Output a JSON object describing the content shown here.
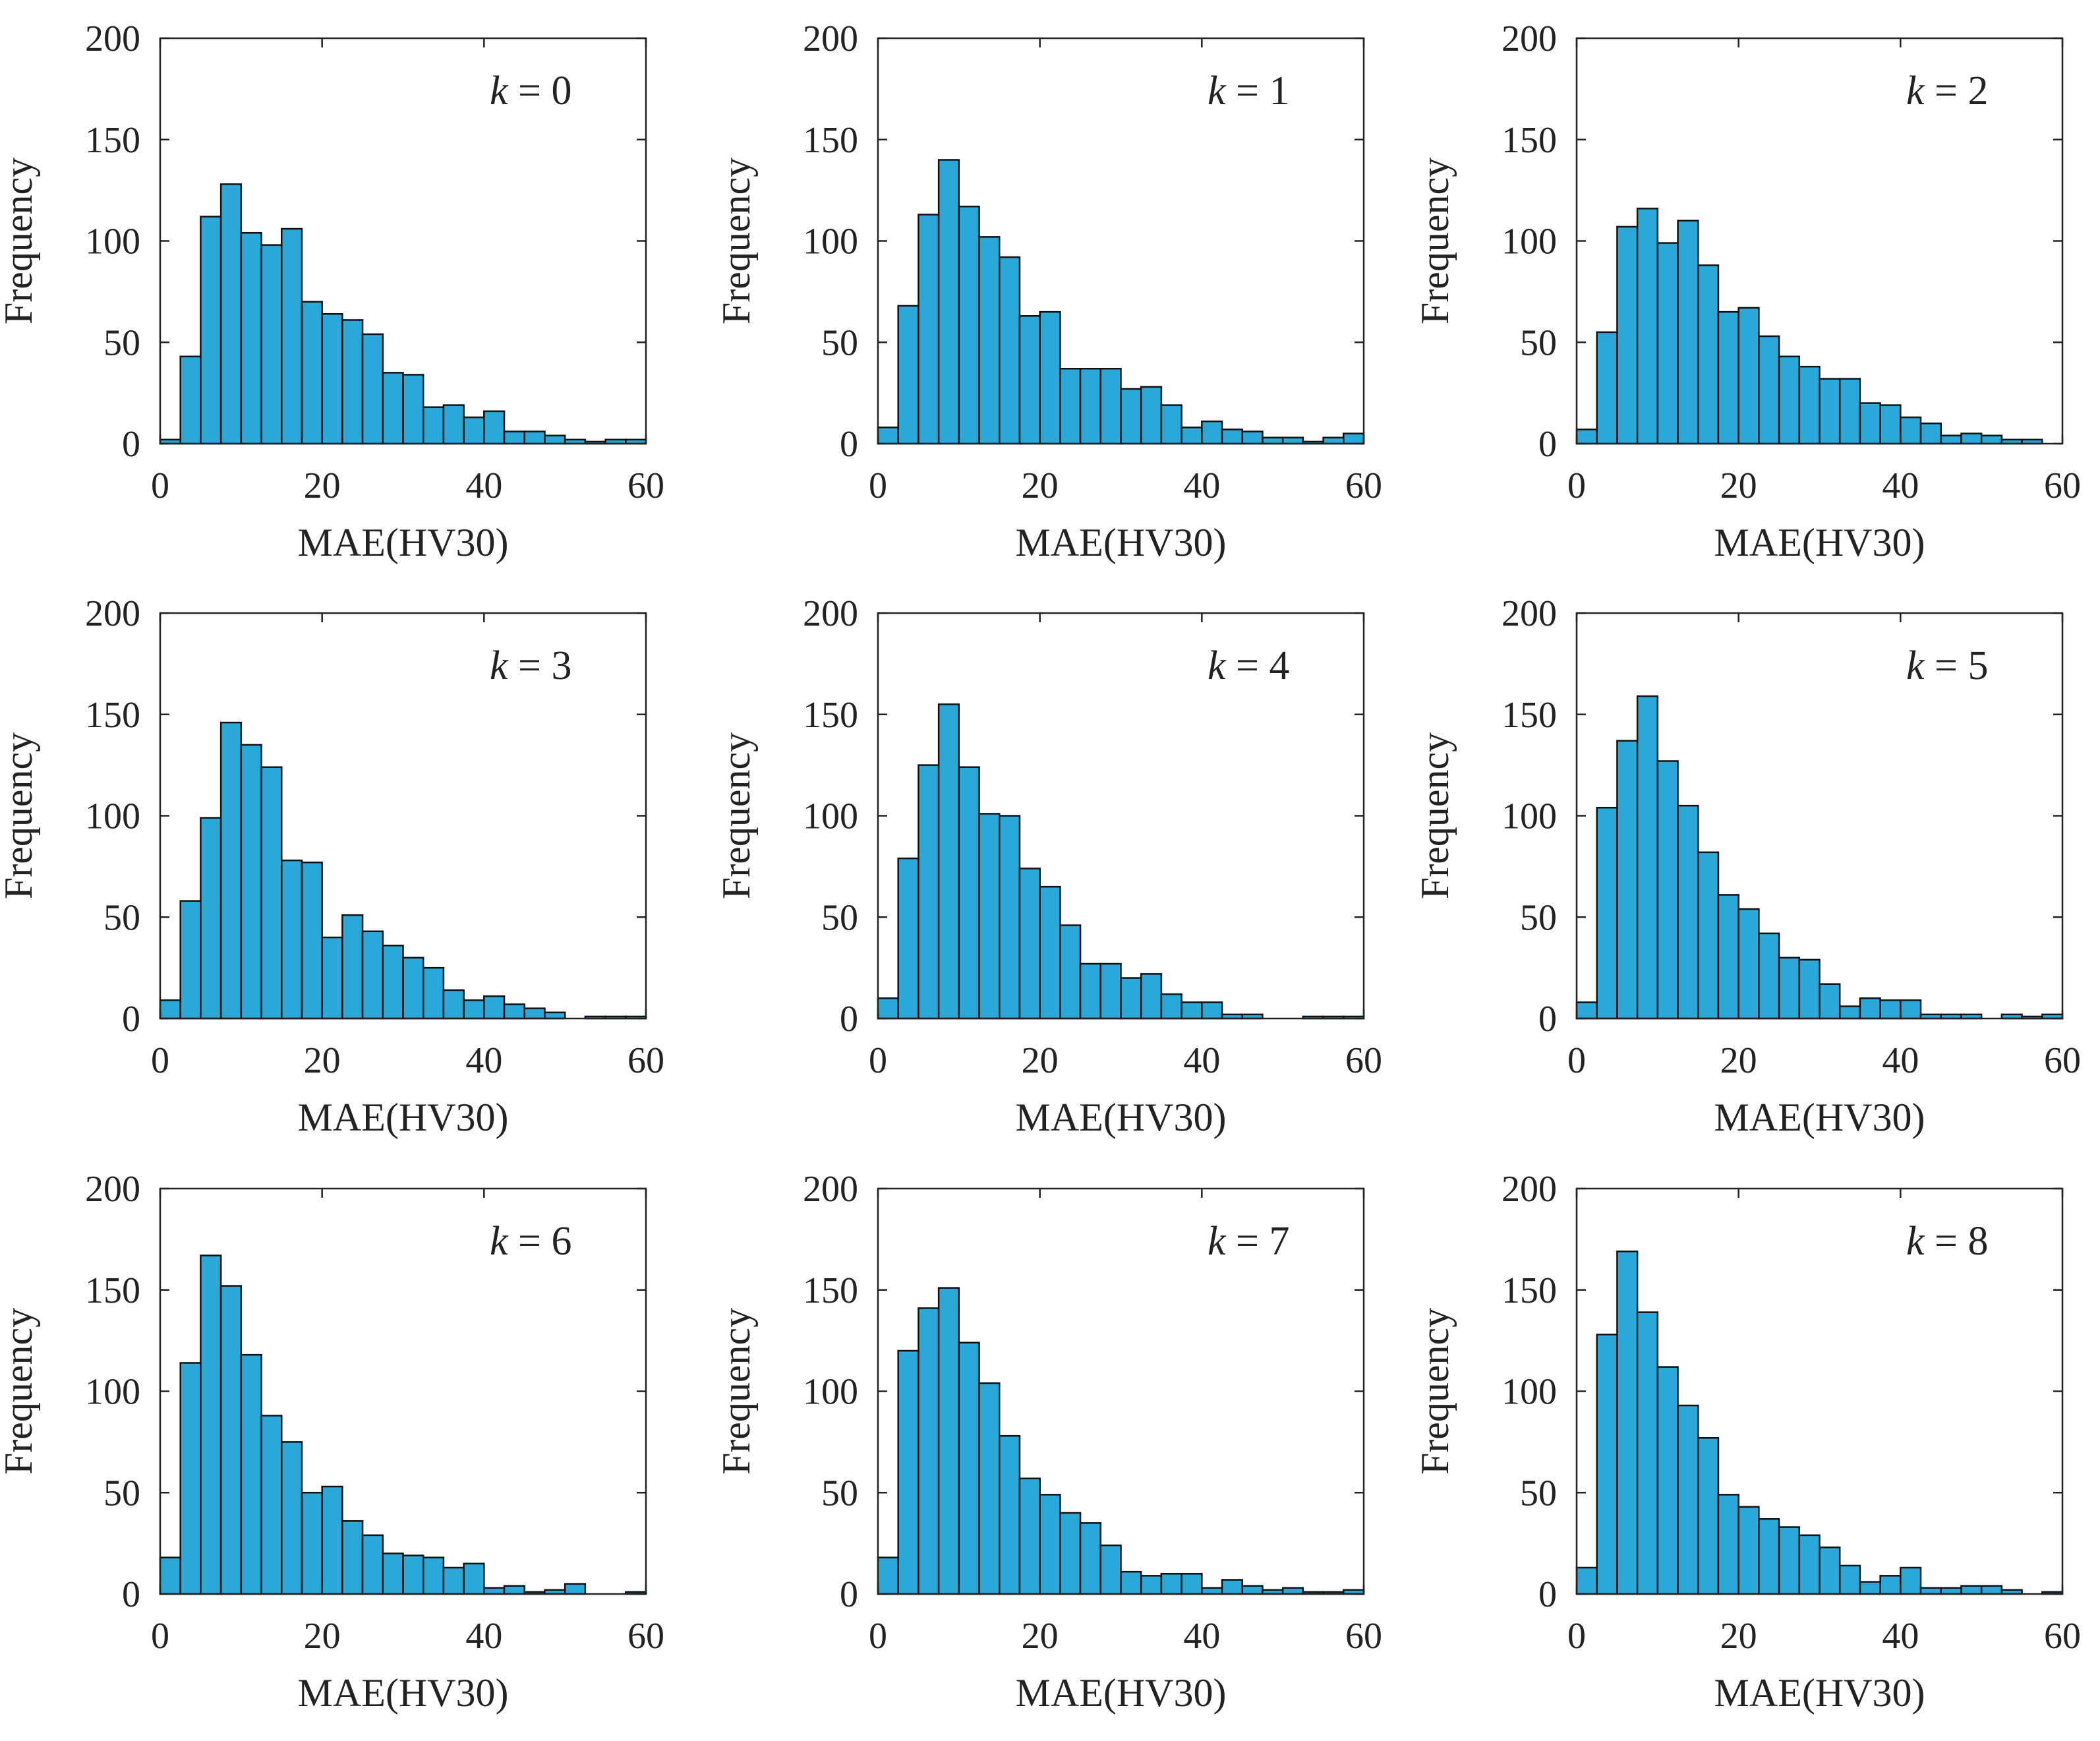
{
  "figure": {
    "bar_fill": "#2aa8d8",
    "bar_stroke": "#111111",
    "axis_color": "#222222"
  },
  "chart_data": [
    {
      "type": "bar",
      "k": "0",
      "xlabel": "MAE(HV30)",
      "ylabel": "Frequency",
      "xlim": [
        0,
        60
      ],
      "ylim": [
        0,
        200
      ],
      "xticks": [
        "0",
        "20",
        "40",
        "60"
      ],
      "yticks": [
        "0",
        "50",
        "100",
        "150",
        "200"
      ],
      "bin_width": 2.5,
      "values": [
        2,
        43,
        112,
        128,
        104,
        98,
        106,
        70,
        64,
        61,
        54,
        35,
        34,
        18,
        19,
        13,
        16,
        6,
        6,
        4,
        2,
        1,
        2,
        2
      ]
    },
    {
      "type": "bar",
      "k": "1",
      "xlabel": "MAE(HV30)",
      "ylabel": "Frequency",
      "xlim": [
        0,
        60
      ],
      "ylim": [
        0,
        200
      ],
      "xticks": [
        "0",
        "20",
        "40",
        "60"
      ],
      "yticks": [
        "0",
        "50",
        "100",
        "150",
        "200"
      ],
      "bin_width": 2.5,
      "values": [
        8,
        68,
        113,
        140,
        117,
        102,
        92,
        63,
        65,
        37,
        37,
        37,
        27,
        28,
        19,
        8,
        11,
        7,
        6,
        3,
        3,
        1,
        3,
        5
      ]
    },
    {
      "type": "bar",
      "k": "2",
      "xlabel": "MAE(HV30)",
      "ylabel": "Frequency",
      "xlim": [
        0,
        60
      ],
      "ylim": [
        0,
        200
      ],
      "xticks": [
        "0",
        "20",
        "40",
        "60"
      ],
      "yticks": [
        "0",
        "50",
        "100",
        "150",
        "200"
      ],
      "bin_width": 2.5,
      "values": [
        7,
        55,
        107,
        116,
        99,
        110,
        88,
        65,
        67,
        53,
        43,
        38,
        32,
        32,
        20,
        19,
        13,
        10,
        4,
        5,
        4,
        2,
        2
      ]
    },
    {
      "type": "bar",
      "k": "3",
      "xlabel": "MAE(HV30)",
      "ylabel": "Frequency",
      "xlim": [
        0,
        60
      ],
      "ylim": [
        0,
        200
      ],
      "xticks": [
        "0",
        "20",
        "40",
        "60"
      ],
      "yticks": [
        "0",
        "50",
        "100",
        "150",
        "200"
      ],
      "bin_width": 2.5,
      "values": [
        9,
        58,
        99,
        146,
        135,
        124,
        78,
        77,
        40,
        51,
        43,
        36,
        30,
        25,
        14,
        9,
        11,
        7,
        5,
        3,
        0,
        1,
        1,
        1
      ]
    },
    {
      "type": "bar",
      "k": "4",
      "xlabel": "MAE(HV30)",
      "ylabel": "Frequency",
      "xlim": [
        0,
        60
      ],
      "ylim": [
        0,
        200
      ],
      "xticks": [
        "0",
        "20",
        "40",
        "60"
      ],
      "yticks": [
        "0",
        "50",
        "100",
        "150",
        "200"
      ],
      "bin_width": 2.5,
      "values": [
        10,
        79,
        125,
        155,
        124,
        101,
        100,
        74,
        65,
        46,
        27,
        27,
        20,
        22,
        12,
        8,
        8,
        2,
        2,
        0,
        0,
        1,
        1,
        1
      ]
    },
    {
      "type": "bar",
      "k": "5",
      "xlabel": "MAE(HV30)",
      "ylabel": "Frequency",
      "xlim": [
        0,
        60
      ],
      "ylim": [
        0,
        200
      ],
      "xticks": [
        "0",
        "20",
        "40",
        "60"
      ],
      "yticks": [
        "0",
        "50",
        "100",
        "150",
        "200"
      ],
      "bin_width": 2.5,
      "values": [
        8,
        104,
        137,
        159,
        127,
        105,
        82,
        61,
        54,
        42,
        30,
        29,
        17,
        6,
        10,
        9,
        9,
        2,
        2,
        2,
        0,
        2,
        1,
        2
      ]
    },
    {
      "type": "bar",
      "k": "6",
      "xlabel": "MAE(HV30)",
      "ylabel": "Frequency",
      "xlim": [
        0,
        60
      ],
      "ylim": [
        0,
        200
      ],
      "xticks": [
        "0",
        "20",
        "40",
        "60"
      ],
      "yticks": [
        "0",
        "50",
        "100",
        "150",
        "200"
      ],
      "bin_width": 2.5,
      "values": [
        18,
        114,
        167,
        152,
        118,
        88,
        75,
        50,
        53,
        36,
        29,
        20,
        19,
        18,
        13,
        15,
        3,
        4,
        1,
        2,
        5,
        0,
        0,
        1
      ]
    },
    {
      "type": "bar",
      "k": "7",
      "xlabel": "MAE(HV30)",
      "ylabel": "Frequency",
      "xlim": [
        0,
        60
      ],
      "ylim": [
        0,
        200
      ],
      "xticks": [
        "0",
        "20",
        "40",
        "60"
      ],
      "yticks": [
        "0",
        "50",
        "100",
        "150",
        "200"
      ],
      "bin_width": 2.5,
      "values": [
        18,
        120,
        141,
        151,
        124,
        104,
        78,
        57,
        49,
        40,
        35,
        24,
        11,
        9,
        10,
        10,
        3,
        7,
        4,
        2,
        3,
        1,
        1,
        2
      ]
    },
    {
      "type": "bar",
      "k": "8",
      "xlabel": "MAE(HV30)",
      "ylabel": "Frequency",
      "xlim": [
        0,
        60
      ],
      "ylim": [
        0,
        200
      ],
      "xticks": [
        "0",
        "20",
        "40",
        "60"
      ],
      "yticks": [
        "0",
        "50",
        "100",
        "150",
        "200"
      ],
      "bin_width": 2.5,
      "values": [
        13,
        128,
        169,
        139,
        112,
        93,
        77,
        49,
        43,
        37,
        33,
        29,
        23,
        14,
        6,
        9,
        13,
        3,
        3,
        4,
        4,
        2,
        0,
        1
      ]
    }
  ]
}
